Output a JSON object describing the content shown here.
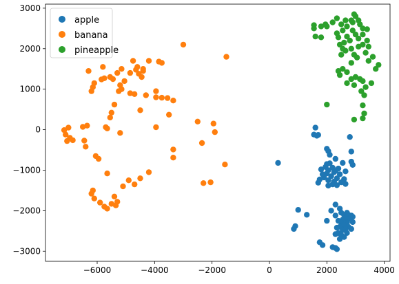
{
  "chart_data": {
    "type": "scatter",
    "title": "",
    "xlabel": "",
    "ylabel": "",
    "xlim": [
      -7800,
      4200
    ],
    "ylim": [
      -3250,
      3100
    ],
    "xticks": [
      -6000,
      -4000,
      -2000,
      0,
      2000,
      4000
    ],
    "yticks": [
      -3000,
      -2000,
      -1000,
      0,
      1000,
      2000,
      3000
    ],
    "xtick_labels": [
      "−6000",
      "−4000",
      "−2000",
      "0",
      "2000",
      "4000"
    ],
    "ytick_labels": [
      "−3000",
      "−2000",
      "−1000",
      "0",
      "1000",
      "2000",
      "3000"
    ],
    "grid": false,
    "legend_position": "top-left",
    "series": [
      {
        "name": "apple",
        "color": "#1f77b4",
        "points": [
          [
            1600,
            50
          ],
          [
            1550,
            -120
          ],
          [
            1700,
            -130
          ],
          [
            1650,
            -150
          ],
          [
            2000,
            -470
          ],
          [
            2050,
            -530
          ],
          [
            2100,
            -620
          ],
          [
            2800,
            -180
          ],
          [
            2850,
            -540
          ],
          [
            2850,
            -790
          ],
          [
            2300,
            -720
          ],
          [
            2550,
            -820
          ],
          [
            2100,
            -830
          ],
          [
            2000,
            -850
          ],
          [
            1950,
            -920
          ],
          [
            2200,
            -940
          ],
          [
            2400,
            -960
          ],
          [
            1800,
            -980
          ],
          [
            2050,
            -1000
          ],
          [
            2300,
            -1020
          ],
          [
            2650,
            -1030
          ],
          [
            2900,
            -870
          ],
          [
            2250,
            -1050
          ],
          [
            2000,
            -1080
          ],
          [
            1850,
            -1100
          ],
          [
            2450,
            -1100
          ],
          [
            2150,
            -1150
          ],
          [
            1900,
            -1180
          ],
          [
            2350,
            -1200
          ],
          [
            2600,
            -1220
          ],
          [
            1750,
            -1230
          ],
          [
            2050,
            -1250
          ],
          [
            2250,
            -1280
          ],
          [
            1700,
            -1310
          ],
          [
            2500,
            -1300
          ],
          [
            2200,
            -1350
          ],
          [
            2050,
            -1380
          ],
          [
            2650,
            -1340
          ],
          [
            2350,
            -1370
          ],
          [
            300,
            -820
          ],
          [
            2300,
            -1850
          ],
          [
            2450,
            -1950
          ],
          [
            2150,
            -2000
          ],
          [
            2500,
            -2050
          ],
          [
            2700,
            -2050
          ],
          [
            2600,
            -2100
          ],
          [
            2750,
            -2100
          ],
          [
            2300,
            -2120
          ],
          [
            2850,
            -2120
          ],
          [
            2650,
            -2180
          ],
          [
            2900,
            -2150
          ],
          [
            2550,
            -2220
          ],
          [
            2400,
            -2250
          ],
          [
            2800,
            -2200
          ],
          [
            2500,
            -2300
          ],
          [
            2700,
            -2300
          ],
          [
            2600,
            -2350
          ],
          [
            2900,
            -2280
          ],
          [
            2450,
            -2400
          ],
          [
            2350,
            -2420
          ],
          [
            2750,
            -2400
          ],
          [
            2650,
            -2450
          ],
          [
            2550,
            -2480
          ],
          [
            2850,
            -2450
          ],
          [
            2400,
            -2550
          ],
          [
            2500,
            -2600
          ],
          [
            2300,
            -2580
          ],
          [
            2700,
            -2550
          ],
          [
            2600,
            -2650
          ],
          [
            2450,
            -2700
          ],
          [
            2000,
            -2250
          ],
          [
            1000,
            -1980
          ],
          [
            900,
            -2380
          ],
          [
            850,
            -2450
          ],
          [
            1300,
            -2100
          ],
          [
            1750,
            -2780
          ],
          [
            1850,
            -2850
          ],
          [
            2200,
            -2900
          ],
          [
            2300,
            -2920
          ],
          [
            2350,
            -2950
          ]
        ]
      },
      {
        "name": "banana",
        "color": "#ff7f0e",
        "points": [
          [
            -3000,
            2100
          ],
          [
            -1500,
            1800
          ],
          [
            -4200,
            1700
          ],
          [
            -4750,
            1700
          ],
          [
            -3850,
            1680
          ],
          [
            -3750,
            1650
          ],
          [
            -4600,
            1550
          ],
          [
            -4400,
            1500
          ],
          [
            -5800,
            1550
          ],
          [
            -5150,
            1500
          ],
          [
            -4650,
            1480
          ],
          [
            -4400,
            1450
          ],
          [
            -6300,
            1450
          ],
          [
            -4850,
            1400
          ],
          [
            -4550,
            1380
          ],
          [
            -5300,
            1400
          ],
          [
            -4450,
            1300
          ],
          [
            -5550,
            1300
          ],
          [
            -5750,
            1270
          ],
          [
            -5450,
            1250
          ],
          [
            -5850,
            1240
          ],
          [
            -5050,
            1200
          ],
          [
            -6100,
            1150
          ],
          [
            -5200,
            1100
          ],
          [
            -6150,
            1050
          ],
          [
            -5150,
            1000
          ],
          [
            -6200,
            950
          ],
          [
            -5250,
            950
          ],
          [
            -3950,
            950
          ],
          [
            -4850,
            900
          ],
          [
            -4700,
            880
          ],
          [
            -3950,
            800
          ],
          [
            -4300,
            850
          ],
          [
            -3750,
            790
          ],
          [
            -3550,
            780
          ],
          [
            -3350,
            720
          ],
          [
            -5400,
            620
          ],
          [
            -4500,
            480
          ],
          [
            -5500,
            420
          ],
          [
            -3500,
            370
          ],
          [
            -5550,
            300
          ],
          [
            -2500,
            200
          ],
          [
            -1950,
            150
          ],
          [
            -6350,
            100
          ],
          [
            -6500,
            70
          ],
          [
            -7000,
            50
          ],
          [
            -5700,
            60
          ],
          [
            -5650,
            30
          ],
          [
            -7150,
            -10
          ],
          [
            -3950,
            60
          ],
          [
            -5200,
            -80
          ],
          [
            -7100,
            -120
          ],
          [
            -1900,
            -60
          ],
          [
            -6950,
            -200
          ],
          [
            -6850,
            -260
          ],
          [
            -7050,
            -280
          ],
          [
            -6450,
            -270
          ],
          [
            -2350,
            -330
          ],
          [
            -6400,
            -420
          ],
          [
            -3350,
            -490
          ],
          [
            -6050,
            -650
          ],
          [
            -5950,
            -720
          ],
          [
            -3350,
            -690
          ],
          [
            -1550,
            -860
          ],
          [
            -5650,
            -1080
          ],
          [
            -4200,
            -1050
          ],
          [
            -4900,
            -1250
          ],
          [
            -4500,
            -1200
          ],
          [
            -4700,
            -1350
          ],
          [
            -2300,
            -1320
          ],
          [
            -2050,
            -1300
          ],
          [
            -5100,
            -1400
          ],
          [
            -6150,
            -1500
          ],
          [
            -6200,
            -1580
          ],
          [
            -6100,
            -1700
          ],
          [
            -5400,
            -1650
          ],
          [
            -5900,
            -1800
          ],
          [
            -5300,
            -1780
          ],
          [
            -5500,
            -1830
          ],
          [
            -5750,
            -1900
          ],
          [
            -5350,
            -1870
          ],
          [
            -5650,
            -1950
          ]
        ]
      },
      {
        "name": "pineapple",
        "color": "#2ca02c",
        "points": [
          [
            2950,
            2850
          ],
          [
            3000,
            2800
          ],
          [
            2850,
            2700
          ],
          [
            3100,
            2700
          ],
          [
            2350,
            2750
          ],
          [
            2650,
            2700
          ],
          [
            2900,
            2650
          ],
          [
            2200,
            2650
          ],
          [
            3150,
            2600
          ],
          [
            2500,
            2600
          ],
          [
            2000,
            2550
          ],
          [
            1550,
            2580
          ],
          [
            1800,
            2550
          ],
          [
            1950,
            2600
          ],
          [
            3250,
            2500
          ],
          [
            2700,
            2550
          ],
          [
            3400,
            2480
          ],
          [
            1550,
            2500
          ],
          [
            2900,
            2450
          ],
          [
            2550,
            2450
          ],
          [
            2350,
            2380
          ],
          [
            3000,
            2350
          ],
          [
            3250,
            2350
          ],
          [
            3100,
            2250
          ],
          [
            2700,
            2300
          ],
          [
            2400,
            2280
          ],
          [
            1600,
            2300
          ],
          [
            1800,
            2280
          ],
          [
            3400,
            2200
          ],
          [
            2800,
            2200
          ],
          [
            2600,
            2150
          ],
          [
            2450,
            2100
          ],
          [
            3250,
            2100
          ],
          [
            3100,
            2050
          ],
          [
            2850,
            2000
          ],
          [
            2550,
            2000
          ],
          [
            3450,
            2050
          ],
          [
            2650,
            1950
          ],
          [
            3350,
            1900
          ],
          [
            2950,
            1850
          ],
          [
            2500,
            1850
          ],
          [
            3600,
            1800
          ],
          [
            3050,
            1780
          ],
          [
            3450,
            1700
          ],
          [
            2850,
            1650
          ],
          [
            3700,
            1500
          ],
          [
            3800,
            1600
          ],
          [
            2550,
            1500
          ],
          [
            2700,
            1420
          ],
          [
            2400,
            1450
          ],
          [
            2450,
            1350
          ],
          [
            3000,
            1300
          ],
          [
            2850,
            1250
          ],
          [
            3150,
            1250
          ],
          [
            2700,
            1150
          ],
          [
            3250,
            1200
          ],
          [
            3550,
            1150
          ],
          [
            2950,
            1100
          ],
          [
            3350,
            1050
          ],
          [
            3200,
            950
          ],
          [
            3300,
            850
          ],
          [
            3250,
            600
          ],
          [
            3300,
            400
          ],
          [
            3250,
            280
          ],
          [
            2950,
            250
          ],
          [
            2000,
            620
          ]
        ]
      }
    ]
  }
}
